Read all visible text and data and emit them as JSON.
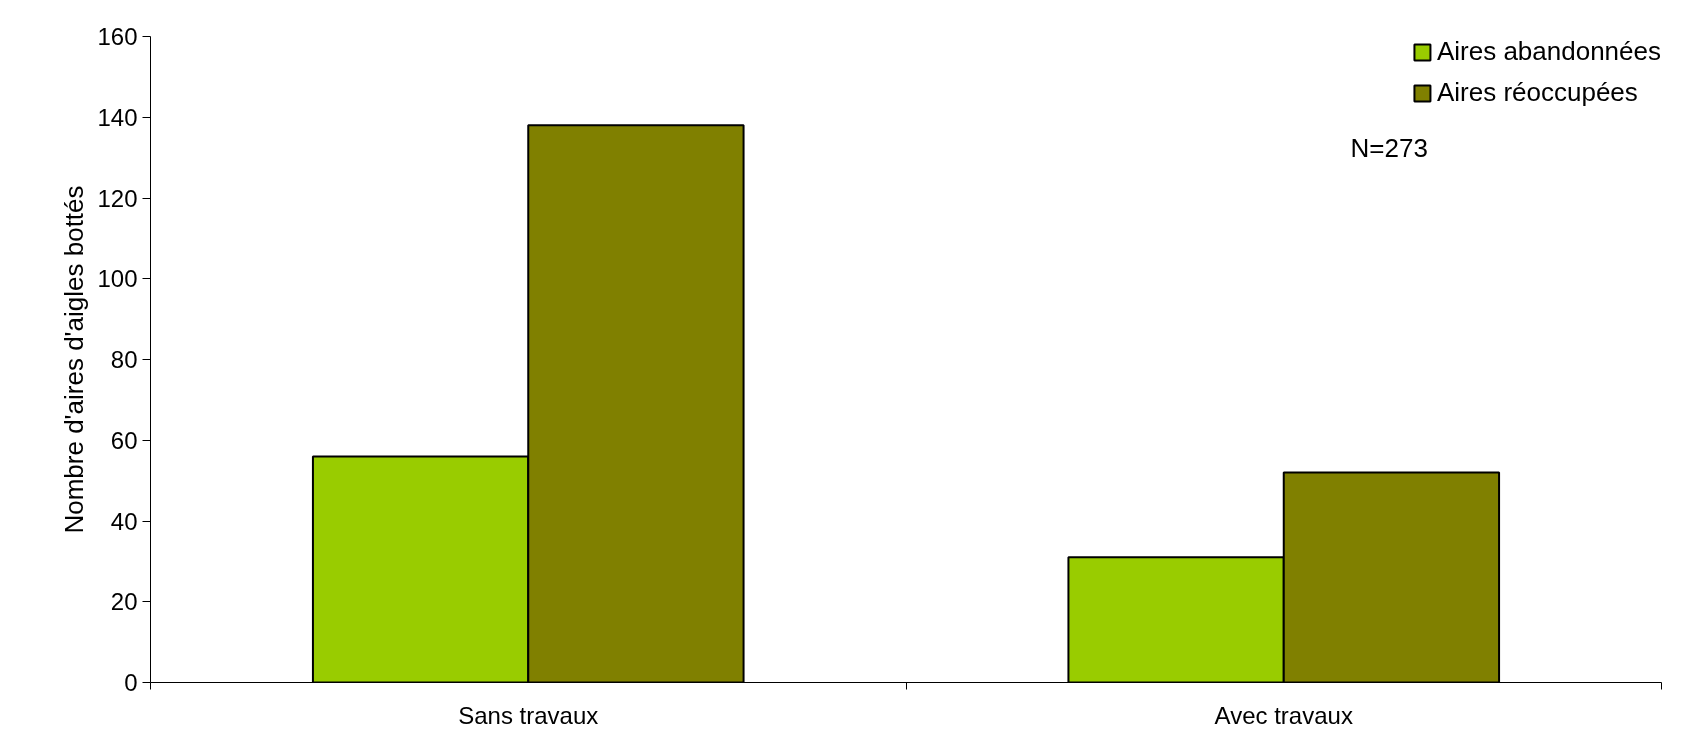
{
  "chart_data": {
    "type": "bar",
    "ylabel": "Nombre d'aires d'aigles bottés",
    "categories": [
      "Sans travaux",
      "Avec travaux"
    ],
    "series": [
      {
        "name": "Aires abandonnées",
        "color": "#99cc00",
        "values": [
          56,
          31
        ]
      },
      {
        "name": "Aires réoccupées",
        "color": "#808000",
        "values": [
          138,
          52
        ]
      }
    ],
    "ylim": [
      0,
      160
    ],
    "yticks": [
      0,
      20,
      40,
      60,
      80,
      100,
      120,
      140,
      160
    ],
    "grid": false,
    "legend": "top right",
    "annotations": [
      "N=273"
    ]
  }
}
